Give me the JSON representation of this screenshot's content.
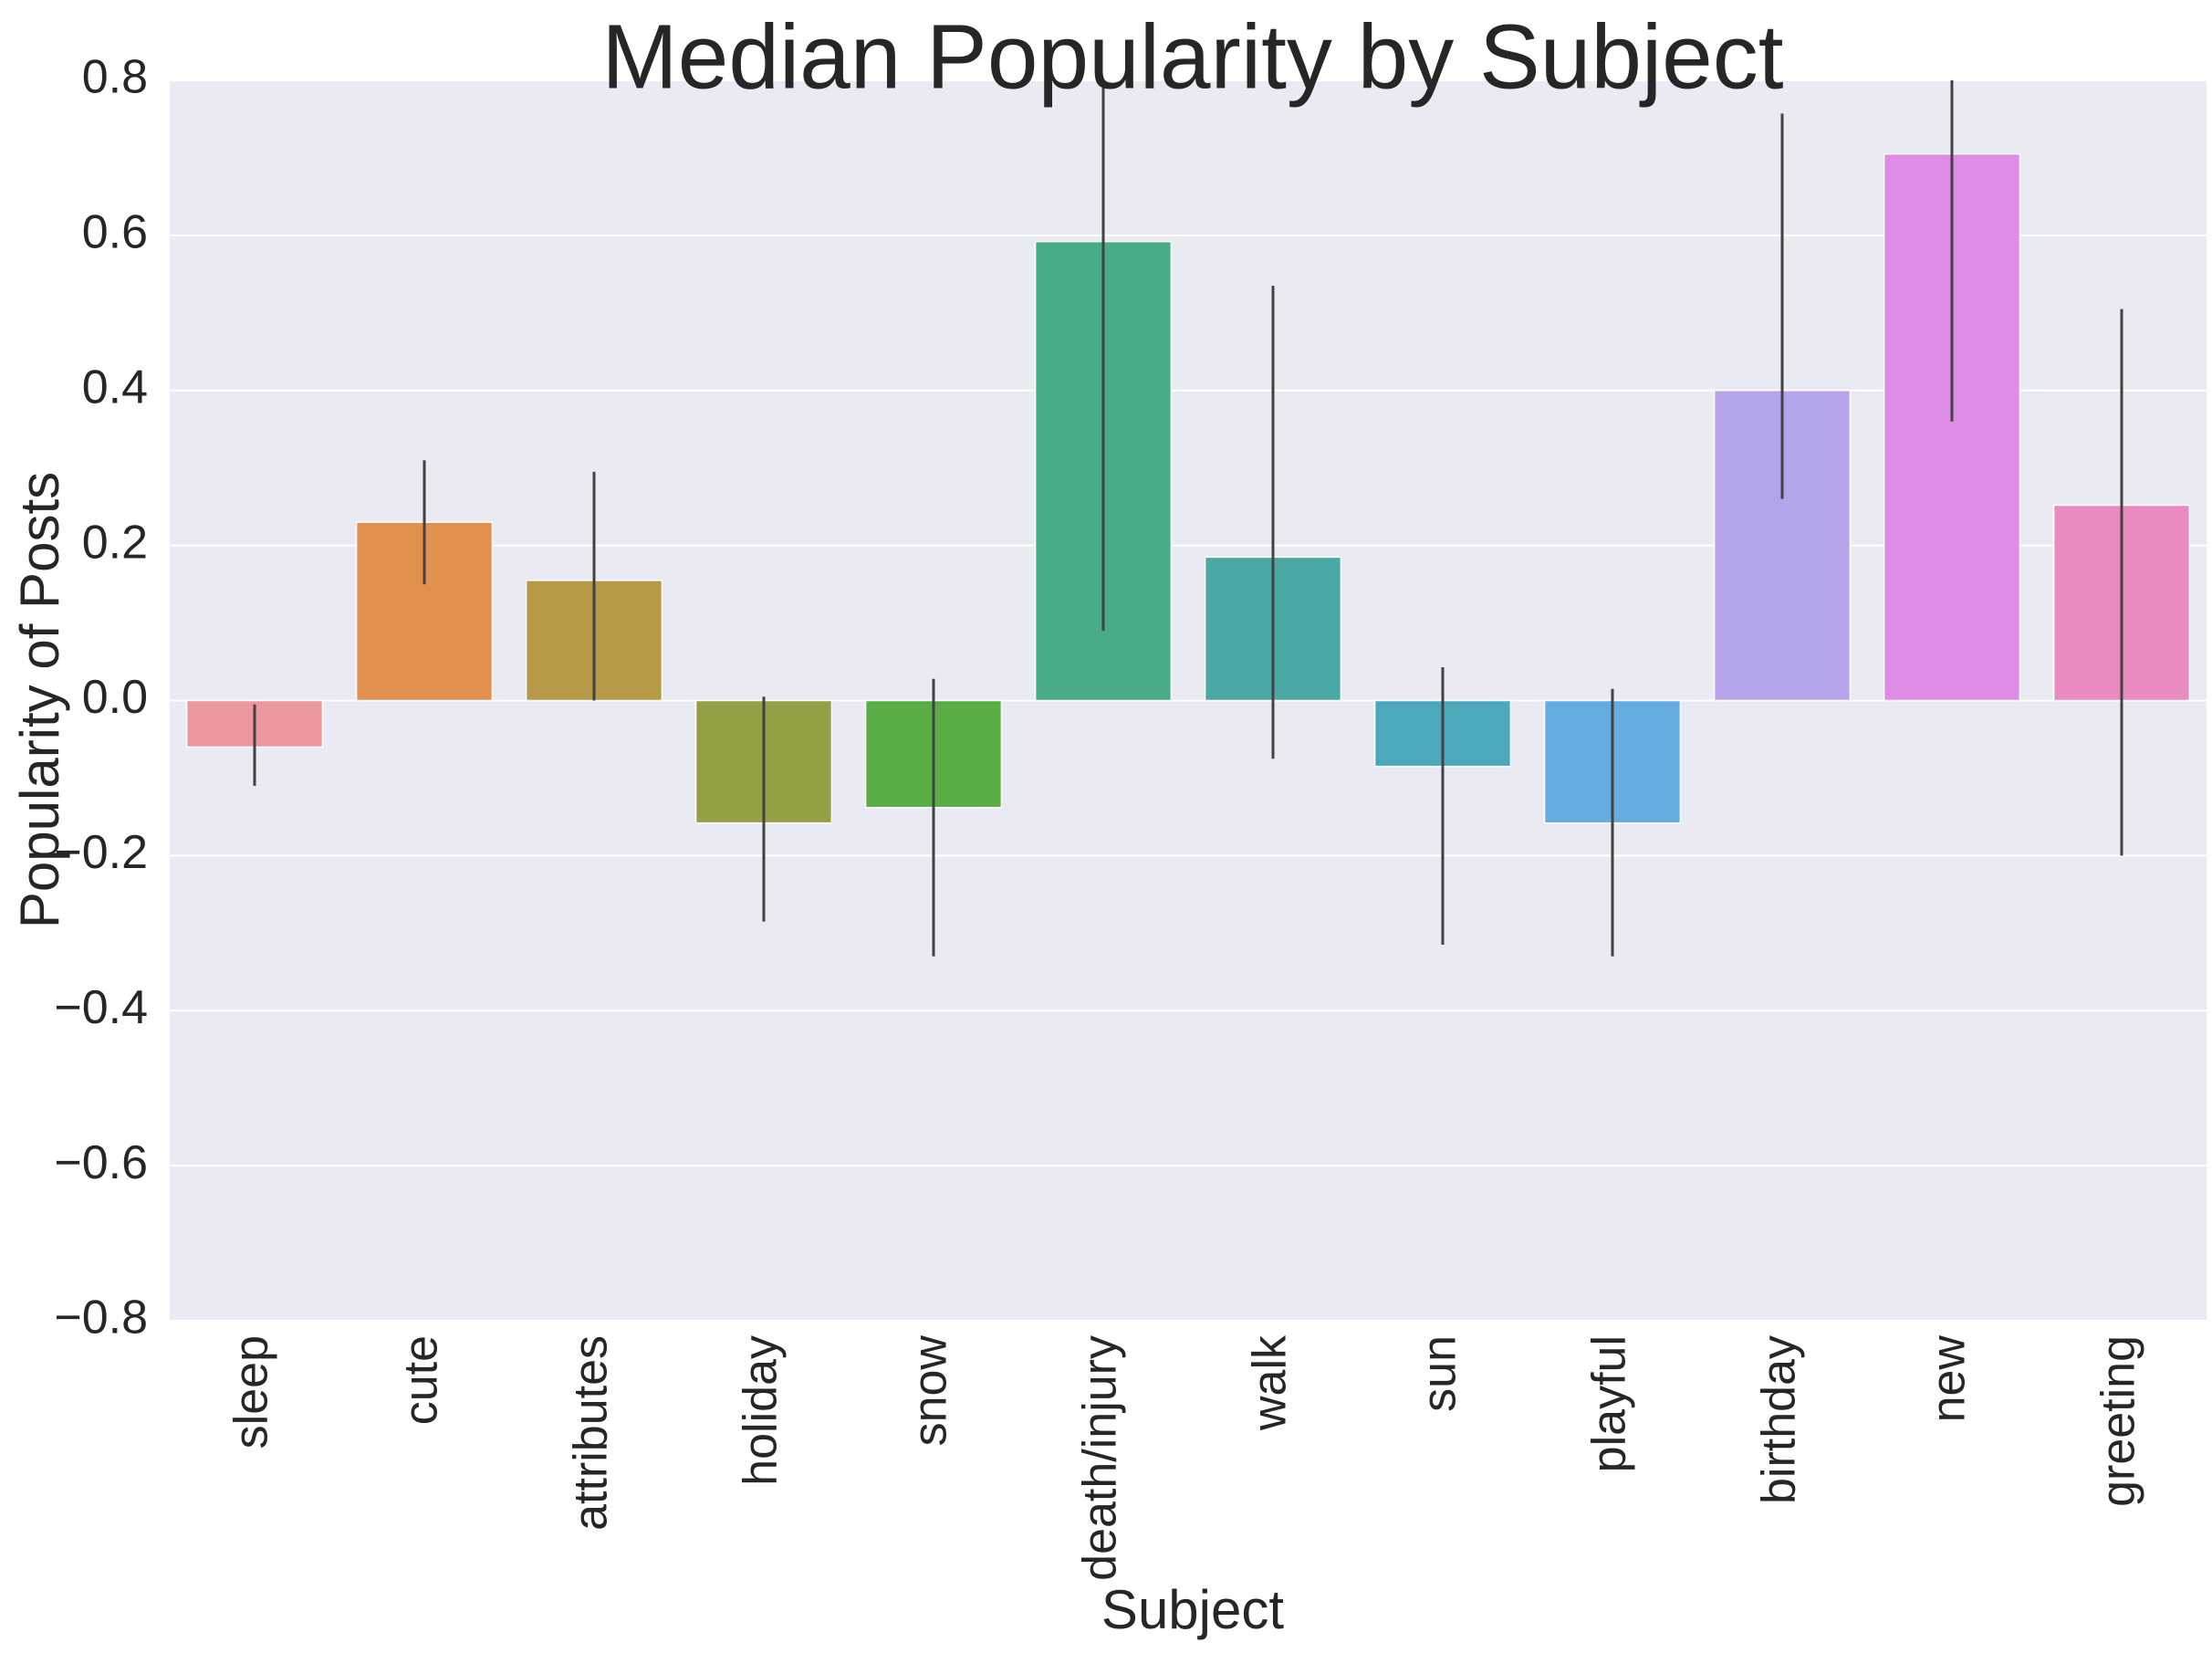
{
  "chart_data": {
    "type": "bar",
    "title": "Median Popularity by Subject",
    "xlabel": "Subject",
    "ylabel": "Popularity of Posts",
    "ylim": [
      -0.8,
      0.8
    ],
    "yticks": [
      -0.8,
      -0.6,
      -0.4,
      -0.2,
      0.0,
      0.2,
      0.4,
      0.6,
      0.8
    ],
    "ytick_labels": [
      "−0.8",
      "−0.6",
      "−0.4",
      "−0.2",
      "0.0",
      "0.2",
      "0.4",
      "0.6",
      "0.8"
    ],
    "grid": true,
    "background_color": "#EAEAF2",
    "grid_color": "#FFFFFF",
    "errorbar_color": "#424242",
    "categories": [
      "sleep",
      "cute",
      "attributes",
      "holiday",
      "snow",
      "death/injury",
      "walk",
      "sun",
      "playful",
      "birthday",
      "new",
      "greeting"
    ],
    "values": [
      -0.06,
      0.23,
      0.155,
      -0.158,
      -0.138,
      0.592,
      0.185,
      -0.085,
      -0.158,
      0.4,
      0.705,
      0.252
    ],
    "error_low": [
      -0.11,
      0.15,
      0.0,
      -0.285,
      -0.33,
      0.09,
      -0.075,
      -0.315,
      -0.33,
      0.26,
      0.36,
      -0.2
    ],
    "error_high": [
      -0.005,
      0.31,
      0.295,
      0.005,
      0.028,
      0.8,
      0.535,
      0.043,
      0.015,
      0.757,
      0.8,
      0.505
    ],
    "colors": [
      "#EC96A0",
      "#E1904E",
      "#B79A47",
      "#979F45",
      "#5AAC45",
      "#48AD86",
      "#4AA9A5",
      "#4CA9BB",
      "#65ACE1",
      "#B5A4EA",
      "#DF8CE7",
      "#E98BC1"
    ]
  }
}
